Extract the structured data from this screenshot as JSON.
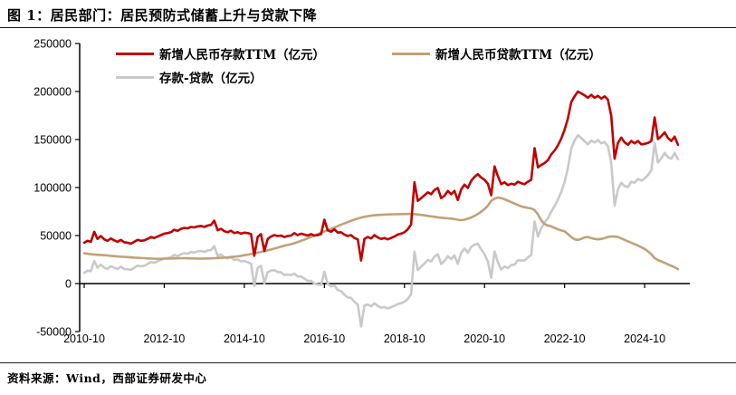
{
  "header": {
    "title": "图 1：居民部门：居民预防式储蓄上升与贷款下降"
  },
  "source": {
    "text": "资料来源：Wind，西部证券研发中心"
  },
  "chart_data": {
    "type": "line",
    "x_start": "2010-10",
    "x_interval_months": 1,
    "x_tick_labels": [
      "2010-10",
      "2012-10",
      "2014-10",
      "2016-10",
      "2018-10",
      "2020-10",
      "2022-10",
      "2024-10"
    ],
    "x_tick_every_points": 24,
    "y_ticks": [
      250000,
      200000,
      150000,
      100000,
      50000,
      0,
      -50000
    ],
    "ylim": [
      -50000,
      250000
    ],
    "grid": false,
    "legend_position": "top",
    "series": [
      {
        "name": "新增人民币存款TTM（亿元）",
        "color": "#c00000",
        "values": [
          42500,
          44500,
          43500,
          54000,
          46500,
          49500,
          46000,
          44500,
          47000,
          45000,
          43500,
          45500,
          43000,
          42500,
          41500,
          43500,
          45500,
          44500,
          45000,
          46500,
          48500,
          47500,
          49000,
          50500,
          52000,
          52500,
          53500,
          56000,
          55000,
          57000,
          58000,
          57500,
          59000,
          58500,
          59500,
          60000,
          59000,
          60500,
          61000,
          65500,
          55500,
          57000,
          54500,
          53500,
          55000,
          52500,
          53500,
          52000,
          53000,
          52500,
          51500,
          29000,
          48500,
          51500,
          34000,
          46500,
          49000,
          50500,
          49500,
          50000,
          48500,
          49500,
          50000,
          52500,
          50500,
          52000,
          51000,
          50000,
          51500,
          50000,
          50500,
          51500,
          66500,
          55500,
          54000,
          56500,
          53000,
          53500,
          51000,
          49500,
          50500,
          47500,
          46000,
          24000,
          46500,
          48500,
          47000,
          50500,
          48000,
          46500,
          47500,
          46000,
          47500,
          49000,
          51000,
          52000,
          53500,
          56500,
          61500,
          105500,
          86000,
          89000,
          92000,
          95000,
          93000,
          97500,
          99500,
          89000,
          91500,
          96500,
          93000,
          96500,
          87000,
          98000,
          103000,
          99500,
          107000,
          111000,
          114000,
          110500,
          108000,
          104000,
          92000,
          122000,
          112000,
          103500,
          105500,
          102500,
          104000,
          103000,
          106000,
          104500,
          103500,
          106000,
          108000,
          141000,
          121000,
          123500,
          125500,
          128500,
          134500,
          138500,
          144000,
          151000,
          160000,
          172000,
          189000,
          195000,
          200000,
          198000,
          196000,
          193500,
          196500,
          193500,
          195500,
          192500,
          195000,
          191500,
          174500,
          130000,
          146500,
          152000,
          147000,
          144500,
          148500,
          146000,
          148500,
          145000,
          145500,
          146500,
          148500,
          173000,
          150500,
          153500,
          157500,
          151500,
          148500,
          153000,
          144500
        ]
      },
      {
        "name": "新增人民币贷款TTM（亿元）",
        "color": "#c2a178",
        "values": [
          31500,
          31000,
          30600,
          30300,
          30000,
          29800,
          29500,
          29200,
          28900,
          28600,
          28300,
          28000,
          27800,
          27500,
          27300,
          27000,
          26800,
          26600,
          26400,
          26200,
          26000,
          25900,
          25800,
          25800,
          25900,
          26000,
          26100,
          26200,
          26300,
          26400,
          26400,
          26300,
          26200,
          26100,
          26000,
          26000,
          26000,
          26100,
          26200,
          26400,
          26600,
          26800,
          27000,
          27300,
          27600,
          28000,
          28400,
          28900,
          29500,
          30100,
          30800,
          31500,
          32200,
          33000,
          33800,
          34600,
          35500,
          36400,
          37400,
          38400,
          39400,
          40200,
          41000,
          42000,
          43200,
          44500,
          45800,
          47200,
          48600,
          50000,
          51400,
          52800,
          54200,
          55600,
          57000,
          58400,
          59800,
          61200,
          62600,
          64000,
          65400,
          66600,
          67700,
          68700,
          69500,
          70200,
          70700,
          71100,
          71400,
          71600,
          71800,
          72000,
          72100,
          72200,
          72300,
          72400,
          72400,
          72500,
          72500,
          72300,
          72000,
          71500,
          71000,
          70500,
          70000,
          69500,
          69000,
          68600,
          68200,
          67900,
          67600,
          67200,
          66500,
          66000,
          66500,
          67500,
          68800,
          70500,
          72500,
          74800,
          77500,
          81000,
          86000,
          88500,
          89500,
          89000,
          87800,
          86300,
          84800,
          83300,
          81800,
          80500,
          79500,
          78800,
          78300,
          76500,
          72000,
          66000,
          62000,
          60500,
          59500,
          58000,
          56500,
          55500,
          54500,
          51500,
          48500,
          46000,
          45500,
          46500,
          48000,
          48500,
          47500,
          46500,
          46000,
          46500,
          47500,
          48500,
          49000,
          49000,
          48500,
          47000,
          45500,
          44000,
          42500,
          41000,
          39500,
          37800,
          36000,
          33500,
          30500,
          26500,
          24500,
          23000,
          21500,
          20000,
          18500,
          17000,
          15000
        ]
      },
      {
        "name": "存款-贷款（亿元）",
        "color": "#c9c9c9",
        "values": [
          11000,
          13500,
          12900,
          23700,
          16500,
          19700,
          16500,
          15300,
          18100,
          16400,
          15200,
          17500,
          15200,
          15000,
          14200,
          16500,
          18700,
          17900,
          18600,
          20300,
          22500,
          21600,
          23200,
          24700,
          26100,
          26500,
          27400,
          29800,
          28700,
          30600,
          31600,
          31200,
          32800,
          32400,
          33500,
          34000,
          33000,
          34400,
          34800,
          39100,
          28900,
          30200,
          27500,
          26200,
          27400,
          24500,
          25100,
          23100,
          23500,
          22400,
          20700,
          -2500,
          16300,
          18500,
          200,
          11900,
          13500,
          14100,
          12100,
          11600,
          9100,
          9300,
          9000,
          10500,
          7300,
          7500,
          5200,
          2800,
          2900,
          0,
          -900,
          -1300,
          12300,
          -100,
          -3000,
          -1900,
          -6800,
          -7700,
          -11600,
          -14500,
          -14900,
          -19100,
          -21700,
          -44700,
          -23000,
          -21700,
          -23700,
          -20600,
          -23400,
          -25100,
          -24300,
          -26000,
          -24600,
          -23200,
          -21300,
          -20400,
          -18900,
          -16000,
          -11000,
          33200,
          14000,
          17500,
          21000,
          24500,
          23000,
          28000,
          30500,
          20400,
          23300,
          28600,
          25400,
          29300,
          20500,
          32000,
          36500,
          32000,
          38200,
          40500,
          41500,
          35700,
          30500,
          23000,
          6000,
          33500,
          22500,
          14500,
          17700,
          16200,
          19200,
          19700,
          24200,
          24000,
          24000,
          27200,
          29700,
          64500,
          49000,
          57500,
          63500,
          68000,
          75000,
          80500,
          87500,
          95500,
          105500,
          120500,
          140500,
          149000,
          154500,
          151500,
          148000,
          145000,
          149000,
          147000,
          149500,
          146000,
          147500,
          143000,
          125500,
          81000,
          98000,
          105000,
          101500,
          100500,
          106000,
          105000,
          109000,
          107200,
          109500,
          113000,
          118000,
          146500,
          126000,
          130500,
          136000,
          131500,
          130000,
          136000,
          129500
        ]
      }
    ]
  }
}
